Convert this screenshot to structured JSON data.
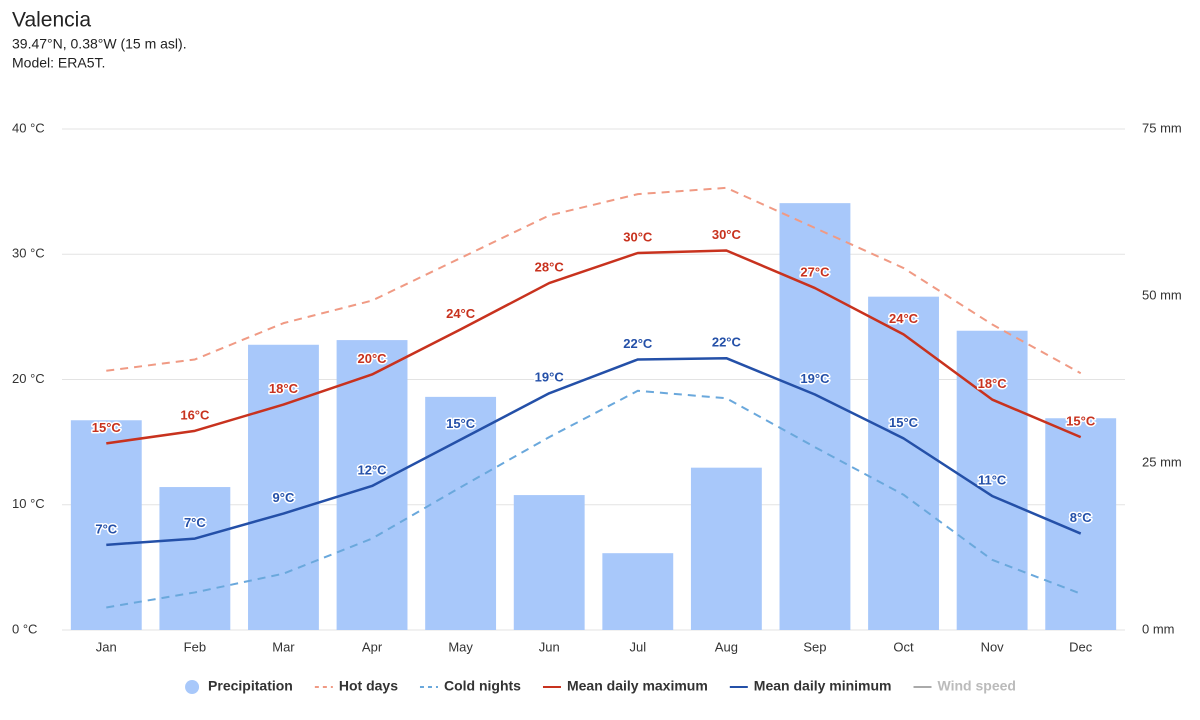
{
  "chart_data": {
    "type": "combo",
    "title": "Valencia",
    "subtitle": [
      "39.47°N, 0.38°W (15 m asl).",
      "Model: ERA5T."
    ],
    "categories": [
      "Jan",
      "Feb",
      "Mar",
      "Apr",
      "May",
      "Jun",
      "Jul",
      "Aug",
      "Sep",
      "Oct",
      "Nov",
      "Dec"
    ],
    "ylim": [
      0,
      40
    ],
    "yticks": [
      {
        "value": 0,
        "label": "0 °C"
      },
      {
        "value": 10,
        "label": "10 °C"
      },
      {
        "value": 20,
        "label": "20 °C"
      },
      {
        "value": 30,
        "label": "30 °C"
      },
      {
        "value": 40,
        "label": "40 °C"
      }
    ],
    "y2lim": [
      0,
      75
    ],
    "y2ticks": [
      {
        "value": 0,
        "label": "0 mm"
      },
      {
        "value": 25,
        "label": "25 mm"
      },
      {
        "value": 50,
        "label": "50 mm"
      },
      {
        "value": 75,
        "label": "75 mm"
      }
    ],
    "grid": true,
    "legend": "bottom",
    "series": [
      {
        "name": "Precipitation",
        "type": "bar",
        "axis": "y2",
        "color": "#a8c8fa",
        "values": [
          31.4,
          21.4,
          42.7,
          43.4,
          34.9,
          20.2,
          11.5,
          24.3,
          63.9,
          49.9,
          44.8,
          31.7
        ]
      },
      {
        "name": "Hot days",
        "type": "line",
        "dashed": true,
        "color": "#f09a84",
        "values": [
          20.7,
          21.6,
          24.5,
          26.3,
          29.7,
          33.1,
          34.8,
          35.3,
          32.1,
          28.9,
          24.4,
          20.5
        ]
      },
      {
        "name": "Cold nights",
        "type": "line",
        "dashed": true,
        "color": "#6aa8dc",
        "values": [
          1.8,
          3.0,
          4.5,
          7.3,
          11.4,
          15.4,
          19.1,
          18.5,
          14.6,
          10.8,
          5.6,
          2.9
        ]
      },
      {
        "name": "Mean daily maximum",
        "type": "line",
        "color": "#c8321e",
        "label_color": "#c8321e",
        "values": [
          14.9,
          15.9,
          18.0,
          20.4,
          24.0,
          27.7,
          30.1,
          30.3,
          27.3,
          23.6,
          18.4,
          15.4
        ],
        "value_labels": [
          "15°C",
          "16°C",
          "18°C",
          "20°C",
          "24°C",
          "28°C",
          "30°C",
          "30°C",
          "27°C",
          "24°C",
          "18°C",
          "15°C"
        ]
      },
      {
        "name": "Mean daily minimum",
        "type": "line",
        "color": "#2450a8",
        "label_color": "#2450a8",
        "values": [
          6.8,
          7.3,
          9.3,
          11.5,
          15.2,
          18.9,
          21.6,
          21.7,
          18.8,
          15.3,
          10.7,
          7.7
        ],
        "value_labels": [
          "7°C",
          "7°C",
          "9°C",
          "12°C",
          "15°C",
          "19°C",
          "22°C",
          "22°C",
          "19°C",
          "15°C",
          "11°C",
          "8°C"
        ]
      },
      {
        "name": "Wind speed",
        "type": "line",
        "color": "#999999",
        "hidden": true
      }
    ]
  }
}
